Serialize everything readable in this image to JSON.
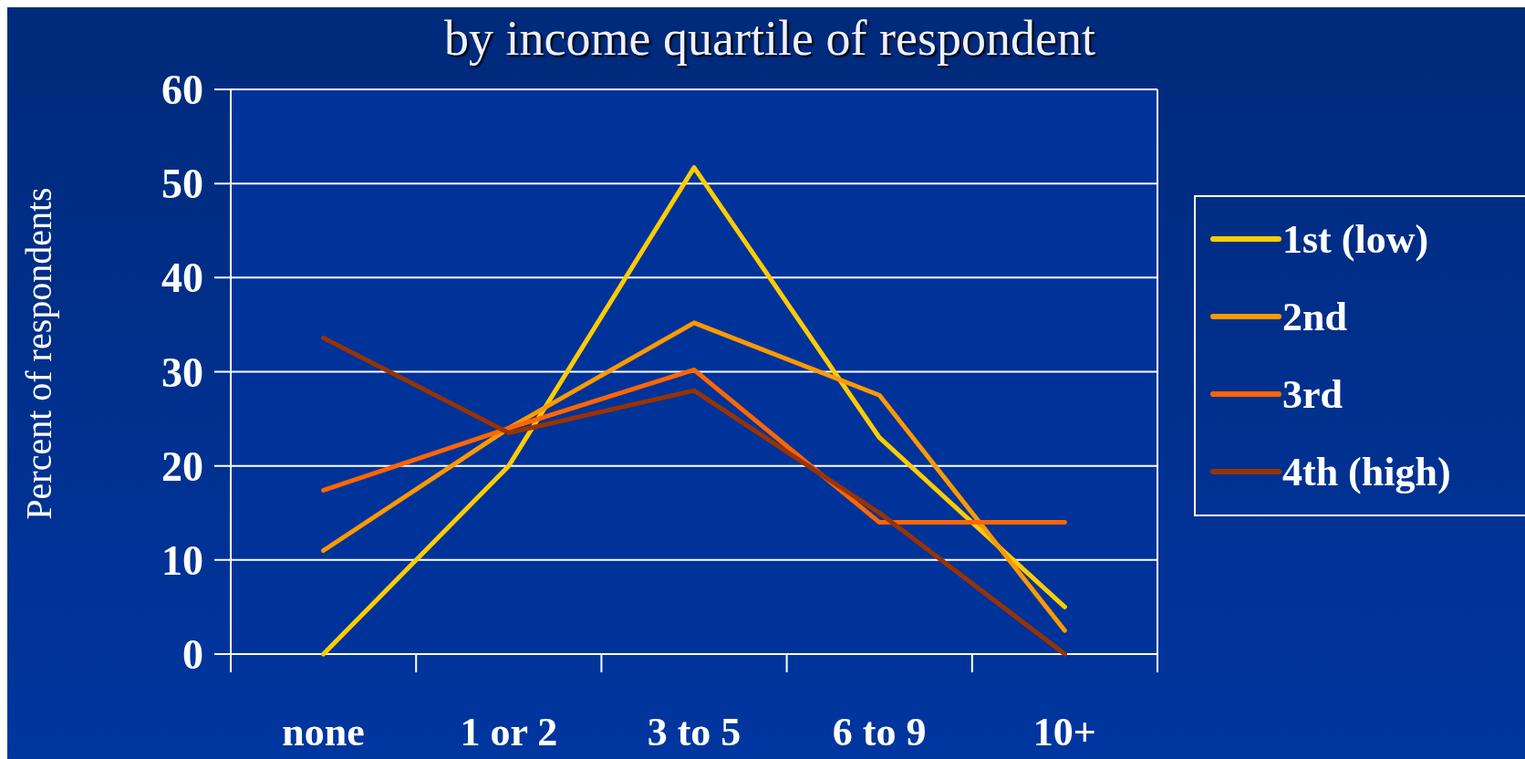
{
  "chart_data": {
    "type": "line",
    "title": "by income quartile of respondent",
    "ylabel": "Percent of respondents",
    "categories": [
      "none",
      "1 or 2",
      "3 to 5",
      "6 to 9",
      "10+"
    ],
    "series": [
      {
        "name": "1st (low)",
        "color": "#ffcc00",
        "values": [
          0,
          20,
          51.7,
          23,
          5
        ]
      },
      {
        "name": "2nd",
        "color": "#ff9900",
        "values": [
          11,
          24,
          35.2,
          27.5,
          2.5
        ]
      },
      {
        "name": "3rd",
        "color": "#ff6600",
        "values": [
          17.4,
          24,
          30.2,
          14,
          14
        ]
      },
      {
        "name": "4th (high)",
        "color": "#993300",
        "values": [
          33.6,
          23.5,
          28,
          15,
          0
        ]
      }
    ],
    "ylim": [
      0,
      60
    ],
    "yticks": [
      0,
      10,
      20,
      30,
      40,
      50,
      60
    ],
    "grid": "y",
    "legend": "right",
    "marker": "none",
    "line_style": "solid"
  }
}
